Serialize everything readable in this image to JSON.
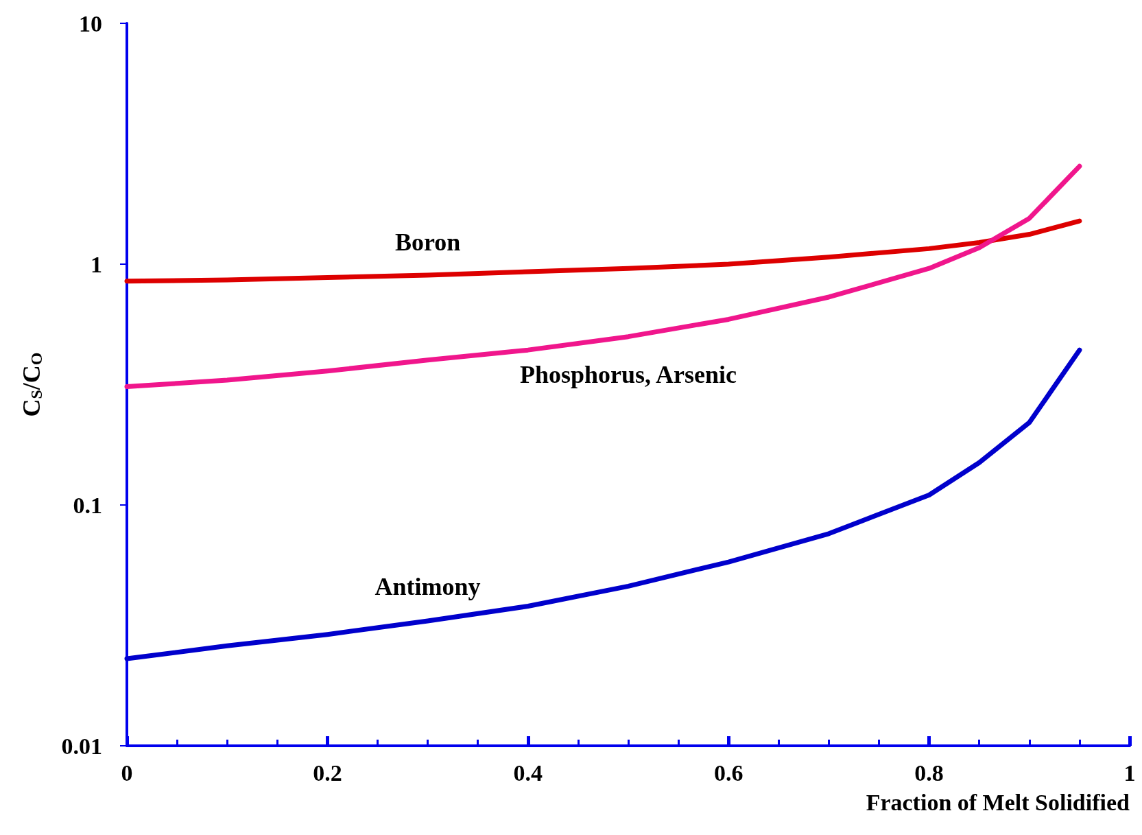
{
  "chart_data": {
    "type": "line",
    "xlabel": "Fraction of Melt Solidified",
    "ylabel": "C$_{S}$/C$_{O}$",
    "x": [
      0,
      0.1,
      0.2,
      0.3,
      0.4,
      0.5,
      0.6,
      0.7,
      0.8,
      0.85,
      0.9,
      0.95
    ],
    "series": [
      {
        "name": "Boron",
        "color": "#dd0000",
        "values": [
          0.85,
          0.86,
          0.88,
          0.9,
          0.93,
          0.96,
          1.0,
          1.07,
          1.16,
          1.23,
          1.33,
          1.51
        ]
      },
      {
        "name": "Phosphorus, Arsenic",
        "color": "#f0168c",
        "values": [
          0.31,
          0.33,
          0.36,
          0.4,
          0.44,
          0.5,
          0.59,
          0.73,
          0.96,
          1.17,
          1.55,
          2.55
        ]
      },
      {
        "name": "Antimony",
        "color": "#0000cc",
        "values": [
          0.023,
          0.026,
          0.029,
          0.033,
          0.038,
          0.046,
          0.058,
          0.076,
          0.11,
          0.15,
          0.22,
          0.44
        ]
      }
    ],
    "xlim": [
      0,
      1
    ],
    "xticks": [
      0,
      0.2,
      0.4,
      0.6,
      0.8,
      1
    ],
    "ylim": [
      0.01,
      10
    ],
    "yticks": [
      0.01,
      0.1,
      1,
      10
    ],
    "log": true,
    "grid": false,
    "legend": false,
    "marker": "none",
    "line_style": "solid"
  }
}
